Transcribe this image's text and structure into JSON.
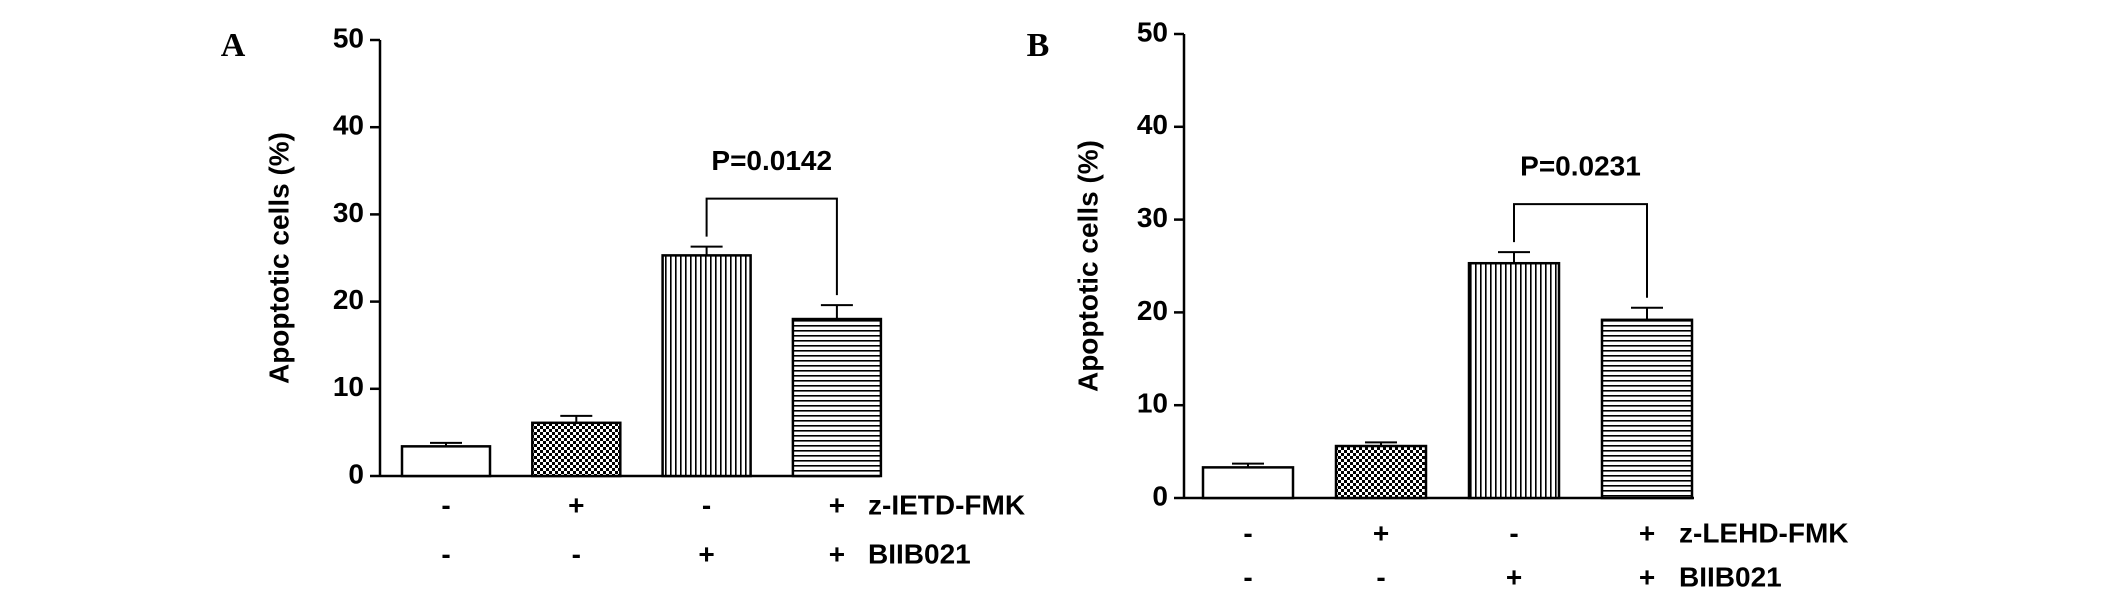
{
  "chart_data": [
    {
      "type": "bar",
      "panel_label": "A",
      "ylabel": "Apoptotic cells (%)",
      "categories": [
        null,
        null,
        null,
        null
      ],
      "values": [
        3.4,
        6.1,
        25.3,
        18.0
      ],
      "errors": [
        0.4,
        0.8,
        1.0,
        1.6
      ],
      "patterns": [
        "none",
        "checker",
        "vertical",
        "horizontal"
      ],
      "color": "#000000",
      "ylim": [
        0,
        50
      ],
      "yticks": [
        0,
        10,
        20,
        30,
        40,
        50
      ],
      "treatments": [
        {
          "name": "z-IETD-FMK",
          "signs": [
            "-",
            "+",
            "-",
            "+"
          ]
        },
        {
          "name": "BIIB021",
          "signs": [
            "-",
            "-",
            "+",
            "+"
          ]
        }
      ],
      "annotation": {
        "text": "P=0.0142",
        "from": 2,
        "to": 3
      }
    },
    {
      "type": "bar",
      "panel_label": "B",
      "ylabel": "Apoptotic cells (%)",
      "categories": [
        null,
        null,
        null,
        null
      ],
      "values": [
        3.3,
        5.6,
        25.3,
        19.2
      ],
      "errors": [
        0.4,
        0.4,
        1.2,
        1.3
      ],
      "patterns": [
        "none",
        "checker",
        "vertical",
        "horizontal"
      ],
      "color": "#000000",
      "ylim": [
        0,
        50
      ],
      "yticks": [
        0,
        10,
        20,
        30,
        40,
        50
      ],
      "treatments": [
        {
          "name": "z-LEHD-FMK",
          "signs": [
            "-",
            "+",
            "-",
            "+"
          ]
        },
        {
          "name": "BIIB021",
          "signs": [
            "-",
            "-",
            "+",
            "+"
          ]
        }
      ],
      "annotation": {
        "text": "P=0.0231",
        "from": 2,
        "to": 3
      }
    }
  ]
}
